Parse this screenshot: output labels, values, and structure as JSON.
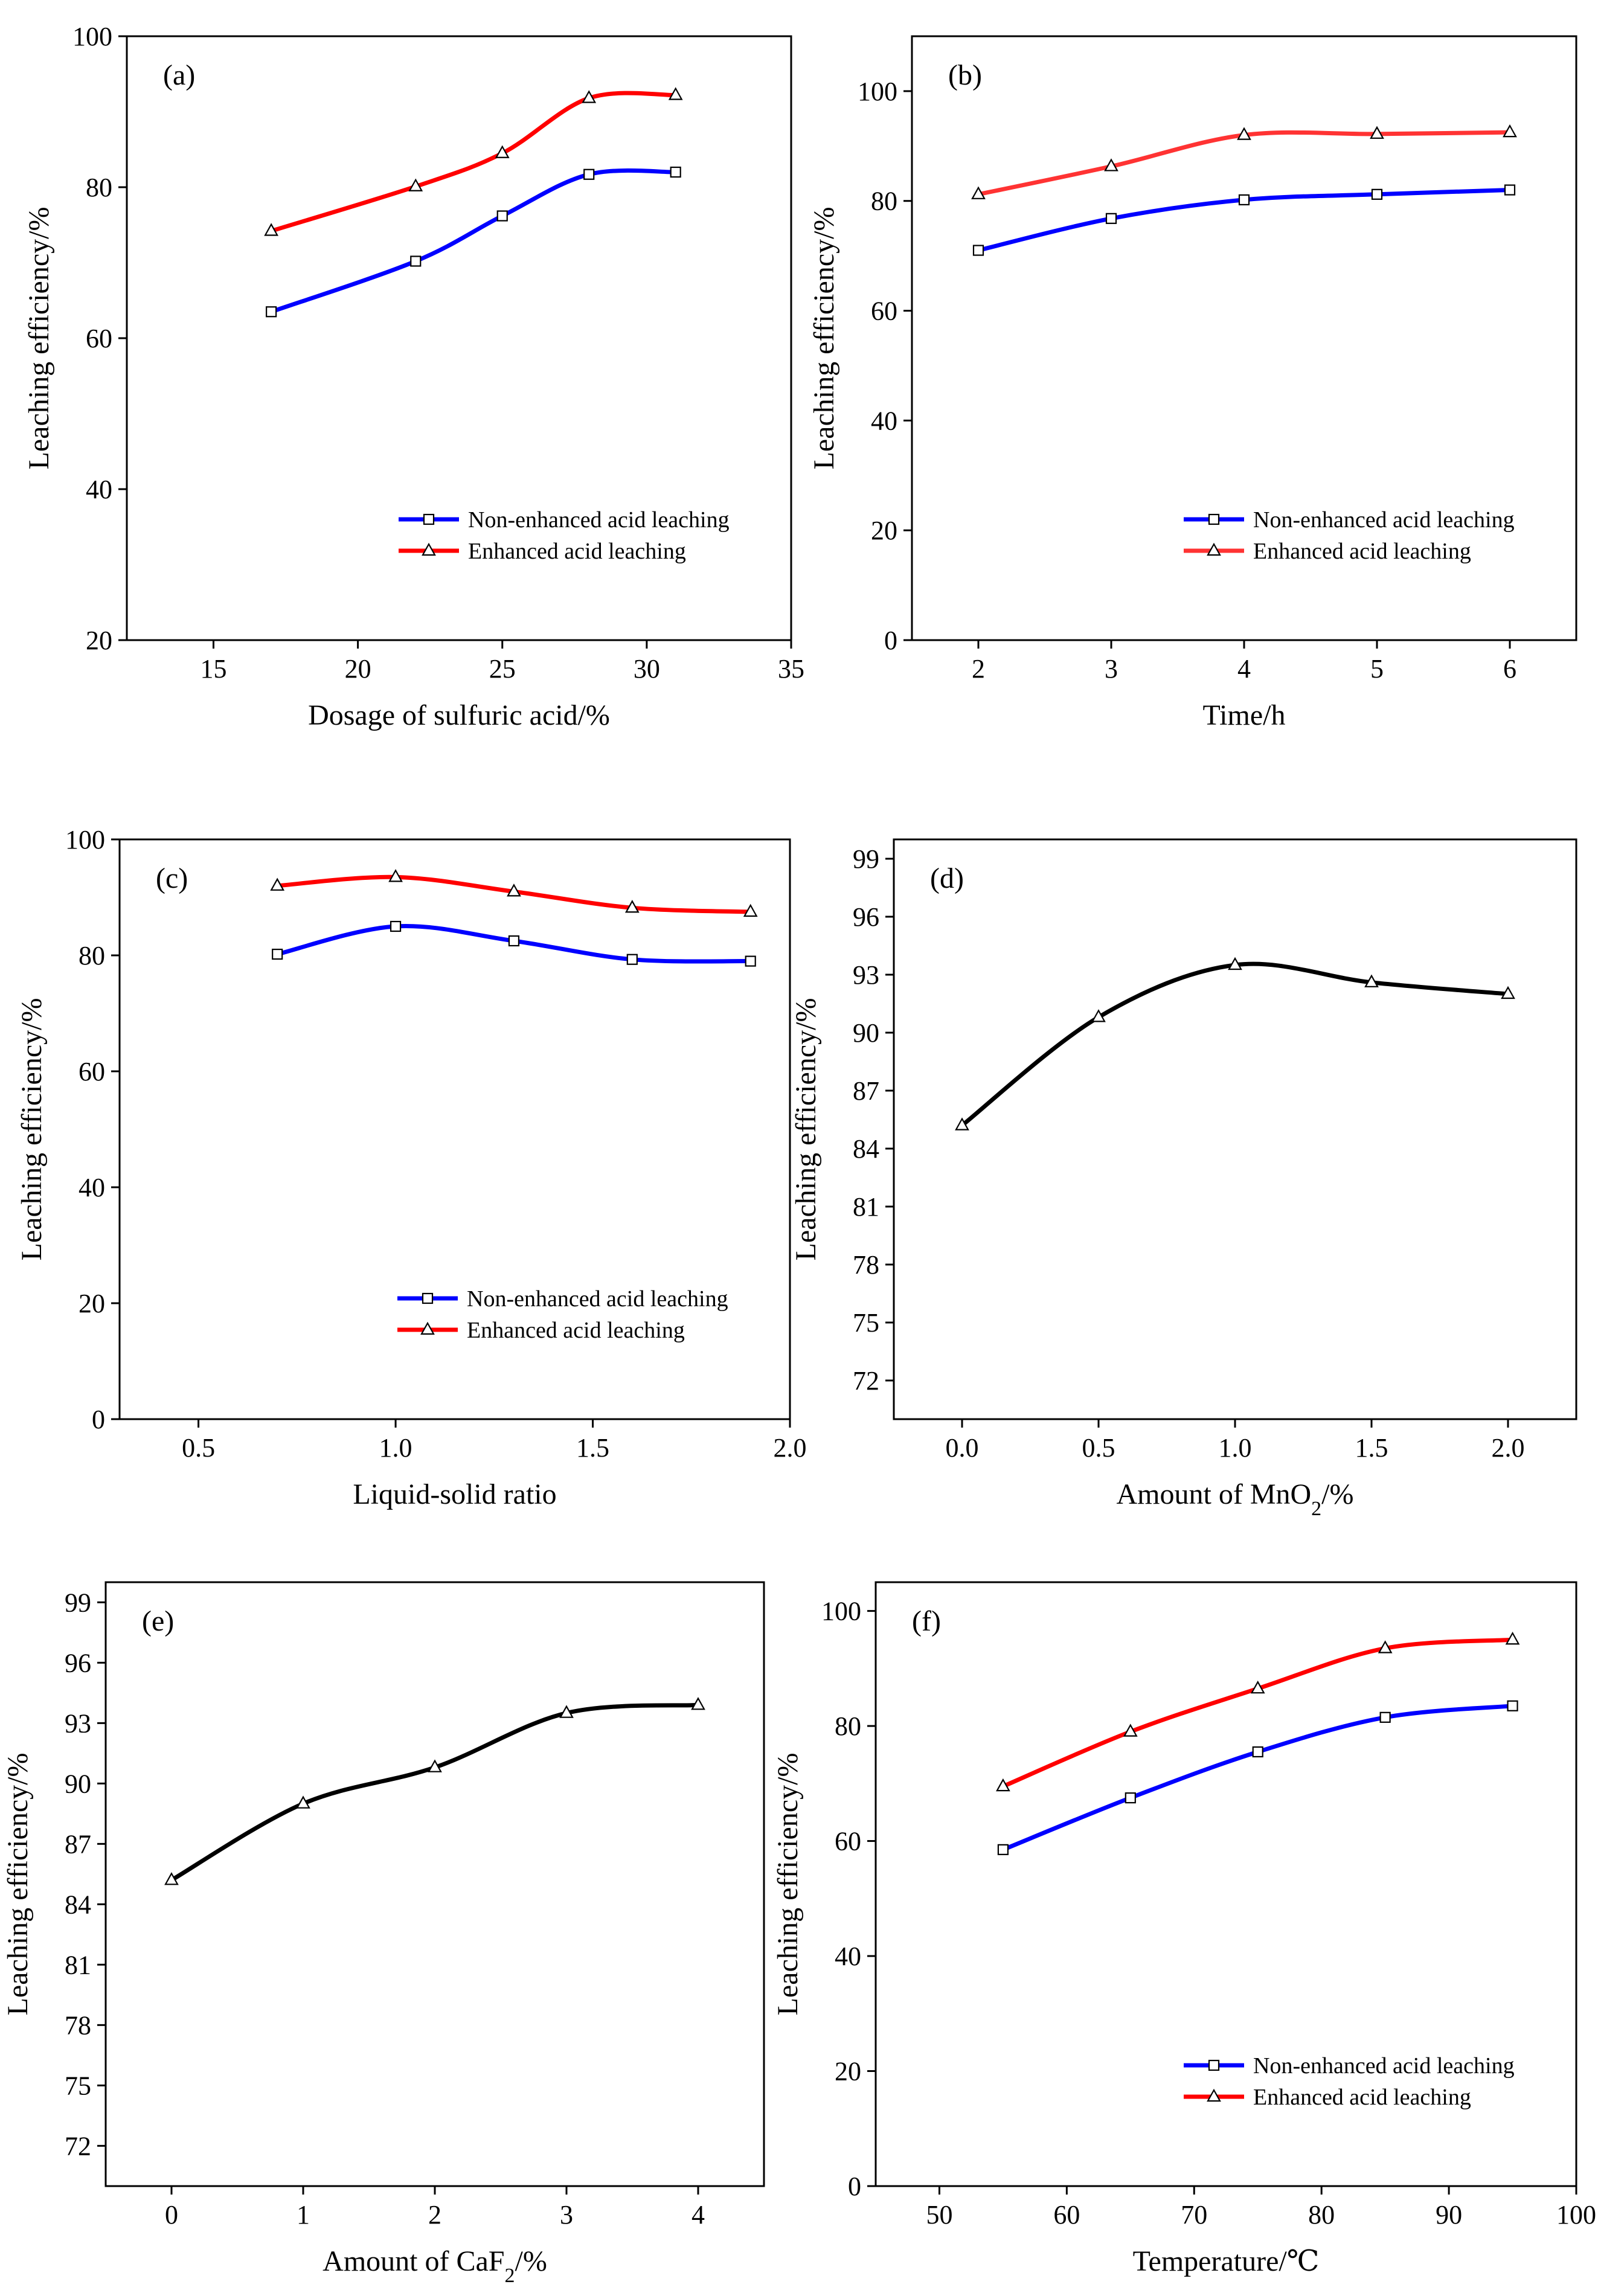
{
  "charts": [
    {
      "id": "a",
      "type": "line",
      "panel_label": "(a)",
      "xlabel": "Dosage  of sulfuric acid/%",
      "ylabel": "Leaching efficiency/%",
      "xlim": [
        12,
        35
      ],
      "ylim": [
        20,
        100
      ],
      "xticks": [
        15,
        20,
        25,
        30,
        35
      ],
      "yticks": [
        20,
        40,
        60,
        80,
        100
      ],
      "tick_decimals": 0,
      "legend": "bottom-right",
      "series": [
        {
          "name": "Non-enhanced acid leaching",
          "color": "#0000ff",
          "marker": "square",
          "x": [
            17,
            22,
            25,
            28,
            31
          ],
          "values": [
            63.5,
            70.2,
            76.2,
            81.7,
            82
          ]
        },
        {
          "name": "Enhanced acid leaching",
          "color": "#ff0000",
          "marker": "triangle",
          "x": [
            17,
            22,
            25,
            28,
            31
          ],
          "values": [
            74.2,
            80.1,
            84.5,
            91.8,
            92.2
          ]
        }
      ]
    },
    {
      "id": "b",
      "type": "line",
      "panel_label": "(b)",
      "xlabel": "Time/h",
      "ylabel": "Leaching efficiency/%",
      "xlim": [
        1.5,
        6.5
      ],
      "ylim": [
        0,
        110
      ],
      "xticks": [
        2,
        3,
        4,
        5,
        6
      ],
      "yticks": [
        0,
        20,
        40,
        60,
        80,
        100
      ],
      "tick_decimals": 0,
      "legend": "bottom-right",
      "series": [
        {
          "name": "Non-enhanced acid leaching",
          "color": "#0000ff",
          "marker": "square",
          "x": [
            2,
            3,
            4,
            5,
            6
          ],
          "values": [
            71,
            76.8,
            80.2,
            81.2,
            82
          ]
        },
        {
          "name": "Enhanced acid leaching",
          "color": "#ff3333",
          "marker": "triangle",
          "x": [
            2,
            3,
            4,
            5,
            6
          ],
          "values": [
            81.2,
            86.3,
            92,
            92.2,
            92.5
          ]
        }
      ]
    },
    {
      "id": "c",
      "type": "line",
      "panel_label": "(c)",
      "xlabel": "Liquid-solid ratio",
      "ylabel": "Leaching efficiency/%",
      "xlim": [
        0.3,
        2.0
      ],
      "ylim": [
        0,
        100
      ],
      "xticks": [
        0.5,
        1.0,
        1.5,
        2.0
      ],
      "yticks": [
        0,
        20,
        40,
        60,
        80,
        100
      ],
      "tick_decimals": 1,
      "legend": "bottom-right",
      "series": [
        {
          "name": "Non-enhanced acid leaching",
          "color": "#0000ff",
          "marker": "square",
          "x": [
            0.7,
            1.0,
            1.3,
            1.6,
            1.9
          ],
          "values": [
            80.2,
            85,
            82.5,
            79.3,
            79
          ]
        },
        {
          "name": "Enhanced acid leaching",
          "color": "#ff0000",
          "marker": "triangle",
          "x": [
            0.7,
            1.0,
            1.3,
            1.6,
            1.9
          ],
          "values": [
            92,
            93.5,
            91,
            88.2,
            87.5
          ]
        }
      ]
    },
    {
      "id": "d",
      "type": "line",
      "panel_label": "(d)",
      "xlabel": "Amount of MnO",
      "xlabel_sub": "2",
      "xlabel_suffix": "/%",
      "ylabel": "Leaching efficiency/%",
      "xlim": [
        -0.25,
        2.25
      ],
      "ylim": [
        70,
        100
      ],
      "xticks": [
        0.0,
        0.5,
        1.0,
        1.5,
        2.0
      ],
      "yticks": [
        72,
        75,
        78,
        81,
        84,
        87,
        90,
        93,
        96,
        99
      ],
      "tick_decimals": 1,
      "legend": "none",
      "series": [
        {
          "name": "Leaching efficiency",
          "color": "#000000",
          "marker": "triangle",
          "x": [
            0.0,
            0.5,
            1.0,
            1.5,
            2.0
          ],
          "values": [
            85.2,
            90.8,
            93.5,
            92.6,
            92
          ]
        }
      ]
    },
    {
      "id": "e",
      "type": "line",
      "panel_label": "(e)",
      "xlabel": "Amount of CaF",
      "xlabel_sub": "2",
      "xlabel_suffix": "/%",
      "ylabel": "Leaching efficiency/%",
      "xlim": [
        -0.5,
        4.5
      ],
      "ylim": [
        70,
        100
      ],
      "xticks": [
        0,
        1,
        2,
        3,
        4
      ],
      "yticks": [
        72,
        75,
        78,
        81,
        84,
        87,
        90,
        93,
        96,
        99
      ],
      "tick_decimals": 0,
      "legend": "none",
      "series": [
        {
          "name": "Leaching efficiency",
          "color": "#000000",
          "marker": "triangle",
          "x": [
            0,
            1,
            2,
            3,
            4
          ],
          "values": [
            85.2,
            89,
            90.8,
            93.5,
            93.9
          ]
        }
      ]
    },
    {
      "id": "f",
      "type": "line",
      "panel_label": "(f)",
      "xlabel": "Temperature/℃",
      "ylabel": "Leaching efficiency/%",
      "xlim": [
        45,
        100
      ],
      "ylim": [
        0,
        105
      ],
      "xticks": [
        50,
        60,
        70,
        80,
        90,
        100
      ],
      "yticks": [
        0,
        20,
        40,
        60,
        80,
        100
      ],
      "tick_decimals": 0,
      "legend": "bottom-right",
      "series": [
        {
          "name": "Non-enhanced acid leaching",
          "color": "#0000ff",
          "marker": "square",
          "x": [
            55,
            65,
            75,
            85,
            95
          ],
          "values": [
            58.5,
            67.5,
            75.5,
            81.5,
            83.5
          ]
        },
        {
          "name": "Enhanced acid leaching",
          "color": "#ff0000",
          "marker": "triangle",
          "x": [
            55,
            65,
            75,
            85,
            95
          ],
          "values": [
            69.5,
            79,
            86.5,
            93.5,
            95
          ]
        }
      ]
    }
  ]
}
